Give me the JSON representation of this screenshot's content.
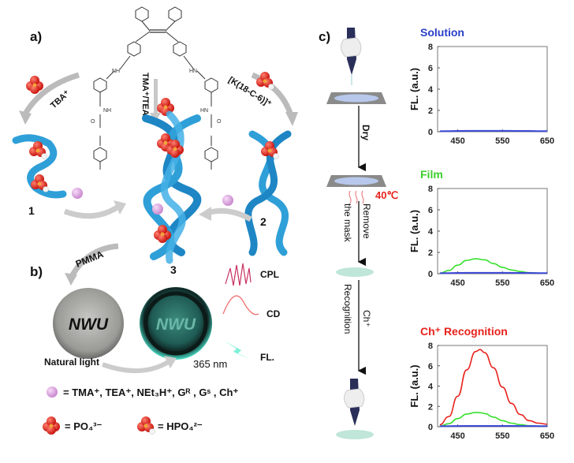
{
  "panels": {
    "a": "a)",
    "b": "b)",
    "c": "c)"
  },
  "scheme_a": {
    "reagent_left": "TBA⁺",
    "reagent_center": "TMA⁺/TEA⁺",
    "reagent_right": "[K(18-C-6)]⁺",
    "compound_1": "1",
    "compound_2": "2",
    "compound_3": "3",
    "molecule_labels": {
      "nh": "NH",
      "hn": "HN",
      "o": "O"
    }
  },
  "scheme_b": {
    "pmma": "PMMA",
    "disk_text": "NWU",
    "natural_light": "Natural light",
    "uv": "365 nm",
    "cpl": "CPL",
    "cd": "CD",
    "fl": "FL."
  },
  "legend": {
    "ball_text": "= TMA⁺, TEA⁺, NEt₃H⁺, Gᴿ , Gˢ , Ch⁺",
    "po4_text": "= PO₄³⁻",
    "hpo4_text": "= HPO₄²⁻"
  },
  "process_c": {
    "dry": "Dry",
    "temp": "40℃",
    "remove": "Remove",
    "the_mask": "the mask",
    "ch": "Ch⁺",
    "recognition": "Recognition"
  },
  "colors": {
    "helix": "#2f9fd8",
    "phosphate": "#e8221c",
    "ball": "#e6a8e6",
    "solution_title": "#2a3fc8",
    "film_title": "#3bcf2a",
    "ch_title": "#e8221c",
    "red_curve": "#e8221c",
    "green_curve": "#37e02c",
    "blue_curve": "#3b49d8"
  },
  "chart_data": [
    {
      "type": "line",
      "title": "Solution",
      "xlabel": "",
      "ylabel": "FL. (a.u.)",
      "xlim": [
        405,
        650
      ],
      "ylim": [
        0,
        8
      ],
      "xticks": [
        "450",
        "550",
        "650"
      ],
      "yticks": [
        "0",
        "2",
        "4",
        "6",
        "8"
      ],
      "x": [
        410,
        430,
        450,
        470,
        490,
        510,
        530,
        550,
        570,
        590,
        610,
        630,
        650
      ],
      "series": [
        {
          "color": "#3b49d8",
          "values": [
            0.05,
            0.06,
            0.07,
            0.08,
            0.08,
            0.08,
            0.08,
            0.08,
            0.08,
            0.07,
            0.07,
            0.06,
            0.06
          ]
        }
      ]
    },
    {
      "type": "line",
      "title": "Film",
      "xlabel": "",
      "ylabel": "FL. (a.u.)",
      "xlim": [
        405,
        650
      ],
      "ylim": [
        0,
        8
      ],
      "xticks": [
        "450",
        "550",
        "650"
      ],
      "yticks": [
        "0",
        "2",
        "4",
        "6",
        "8"
      ],
      "x": [
        410,
        430,
        450,
        470,
        490,
        510,
        530,
        550,
        570,
        590,
        610,
        630,
        650
      ],
      "series": [
        {
          "color": "#37e02c",
          "values": [
            0.05,
            0.3,
            0.8,
            1.25,
            1.4,
            1.3,
            0.95,
            0.6,
            0.35,
            0.2,
            0.1,
            0.06,
            0.05
          ]
        },
        {
          "color": "#3b49d8",
          "values": [
            0.05,
            0.06,
            0.07,
            0.08,
            0.08,
            0.08,
            0.08,
            0.08,
            0.08,
            0.07,
            0.07,
            0.06,
            0.06
          ]
        }
      ]
    },
    {
      "type": "line",
      "title": "Ch⁺ Recognition",
      "xlabel": "",
      "ylabel": "FL. (a.u.)",
      "xlim": [
        405,
        650
      ],
      "ylim": [
        0,
        8
      ],
      "xticks": [
        "450",
        "550",
        "650"
      ],
      "yticks": [
        "0",
        "2",
        "4",
        "6",
        "8"
      ],
      "x": [
        410,
        430,
        450,
        470,
        490,
        500,
        510,
        530,
        550,
        570,
        590,
        610,
        630,
        650
      ],
      "series": [
        {
          "color": "#e8221c",
          "values": [
            0.2,
            1.0,
            3.0,
            5.6,
            7.4,
            7.6,
            7.3,
            5.8,
            3.9,
            2.3,
            1.2,
            0.6,
            0.35,
            0.25
          ]
        },
        {
          "color": "#37e02c",
          "values": [
            0.05,
            0.3,
            0.8,
            1.25,
            1.4,
            1.38,
            1.3,
            0.95,
            0.6,
            0.35,
            0.2,
            0.1,
            0.06,
            0.05
          ]
        },
        {
          "color": "#3b49d8",
          "values": [
            0.05,
            0.06,
            0.07,
            0.08,
            0.08,
            0.08,
            0.08,
            0.08,
            0.08,
            0.08,
            0.07,
            0.07,
            0.06,
            0.06
          ]
        }
      ]
    }
  ]
}
